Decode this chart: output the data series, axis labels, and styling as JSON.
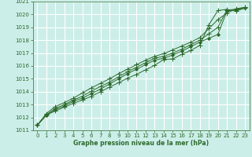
{
  "xlabel": "Graphe pression niveau de la mer (hPa)",
  "xlim": [
    -0.5,
    23.5
  ],
  "ylim": [
    1011,
    1021
  ],
  "yticks": [
    1011,
    1012,
    1013,
    1014,
    1015,
    1016,
    1017,
    1018,
    1019,
    1020,
    1021
  ],
  "xticks": [
    0,
    1,
    2,
    3,
    4,
    5,
    6,
    7,
    8,
    9,
    10,
    11,
    12,
    13,
    14,
    15,
    16,
    17,
    18,
    19,
    20,
    21,
    22,
    23
  ],
  "background_color": "#cceee8",
  "grid_color": "#ffffff",
  "line_color": "#2d6a2d",
  "lines": [
    [
      1011.4,
      1012.2,
      1012.5,
      1012.8,
      1013.1,
      1013.35,
      1013.65,
      1014.0,
      1014.35,
      1014.7,
      1015.05,
      1015.35,
      1015.7,
      1016.05,
      1016.5,
      1016.55,
      1016.9,
      1017.2,
      1017.6,
      1019.2,
      1020.3,
      1020.4,
      1020.25,
      1020.5
    ],
    [
      1011.4,
      1012.15,
      1012.6,
      1012.9,
      1013.25,
      1013.5,
      1013.85,
      1014.2,
      1014.6,
      1015.0,
      1015.4,
      1015.75,
      1016.1,
      1016.45,
      1016.6,
      1016.85,
      1017.15,
      1017.5,
      1017.85,
      1018.15,
      1018.45,
      1020.25,
      1020.35,
      1020.5
    ],
    [
      1011.4,
      1012.2,
      1012.7,
      1013.0,
      1013.35,
      1013.65,
      1014.05,
      1014.4,
      1014.75,
      1015.15,
      1015.55,
      1015.9,
      1016.25,
      1016.6,
      1016.75,
      1017.0,
      1017.3,
      1017.65,
      1018.0,
      1018.5,
      1019.0,
      1020.35,
      1020.4,
      1020.55
    ],
    [
      1011.4,
      1012.3,
      1012.85,
      1013.15,
      1013.5,
      1013.9,
      1014.3,
      1014.65,
      1015.0,
      1015.4,
      1015.75,
      1016.1,
      1016.45,
      1016.75,
      1016.95,
      1017.25,
      1017.55,
      1017.85,
      1018.2,
      1018.9,
      1019.6,
      1020.1,
      1020.45,
      1020.55
    ]
  ],
  "marker_styles": [
    "+",
    "D",
    "+",
    "+"
  ],
  "marker_sizes": [
    4,
    2,
    4,
    4
  ]
}
